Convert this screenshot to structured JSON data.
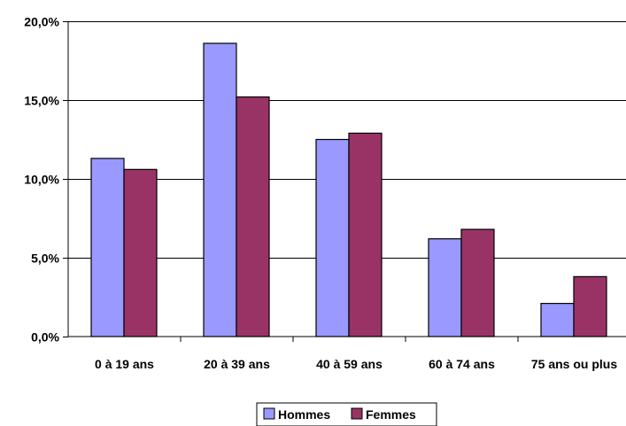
{
  "chart_data": {
    "type": "bar",
    "categories": [
      "0 à 19 ans",
      "20 à 39 ans",
      "40 à 59 ans",
      "60 à 74 ans",
      "75 ans ou plus"
    ],
    "series": [
      {
        "name": "Hommes",
        "values": [
          11.3,
          18.6,
          12.5,
          6.2,
          2.1
        ],
        "color": "#9999ff"
      },
      {
        "name": "Femmes",
        "values": [
          10.6,
          15.2,
          12.9,
          6.8,
          3.8
        ],
        "color": "#993366"
      }
    ],
    "title": "",
    "xlabel": "",
    "ylabel": "",
    "ylim": [
      0,
      20
    ],
    "yticks": [
      0,
      5,
      10,
      15,
      20
    ],
    "ytick_labels": [
      "0,0%",
      "5,0%",
      "10,0%",
      "15,0%",
      "20,0%"
    ],
    "grid": true,
    "legend_position": "bottom"
  }
}
